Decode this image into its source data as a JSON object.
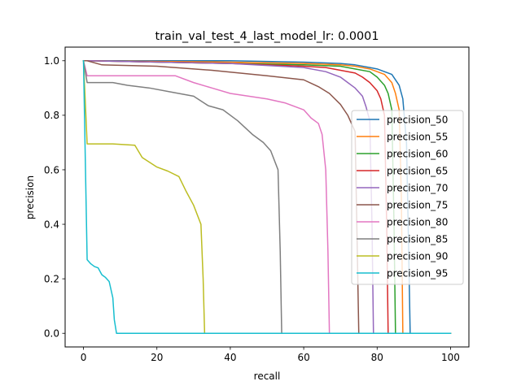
{
  "chart_data": {
    "type": "line",
    "title": "train_val_test_4_last_model_lr: 0.0001",
    "xlabel": "recall",
    "ylabel": "precision",
    "xlim": [
      -5,
      105
    ],
    "ylim": [
      -0.05,
      1.05
    ],
    "xticks": [
      0,
      20,
      40,
      60,
      80,
      100
    ],
    "xtick_labels": [
      "0",
      "20",
      "40",
      "60",
      "80",
      "100"
    ],
    "yticks": [
      0.0,
      0.2,
      0.4,
      0.6,
      0.8,
      1.0
    ],
    "ytick_labels": [
      "0.0",
      "0.2",
      "0.4",
      "0.6",
      "0.8",
      "1.0"
    ],
    "grid": false,
    "legend_position": "center-right",
    "series": [
      {
        "name": "precision_50",
        "color": "#1f77b4",
        "x": [
          0,
          1,
          40,
          60,
          70,
          74,
          78,
          80,
          82,
          84,
          86,
          87,
          88,
          88.6,
          89,
          100
        ],
        "y": [
          1.0,
          1.0,
          1.0,
          0.995,
          0.99,
          0.985,
          0.975,
          0.97,
          0.96,
          0.95,
          0.91,
          0.86,
          0.7,
          0.3,
          0.0,
          0.0
        ]
      },
      {
        "name": "precision_55",
        "color": "#ff7f0e",
        "x": [
          0,
          1,
          40,
          60,
          70,
          74,
          78,
          80,
          82,
          84,
          85,
          86,
          86.6,
          87,
          100
        ],
        "y": [
          1.0,
          1.0,
          0.995,
          0.99,
          0.985,
          0.98,
          0.97,
          0.96,
          0.95,
          0.92,
          0.88,
          0.82,
          0.5,
          0.0,
          0.0
        ]
      },
      {
        "name": "precision_60",
        "color": "#2ca02c",
        "x": [
          0,
          1,
          40,
          60,
          70,
          74,
          78,
          80,
          82,
          83,
          84,
          84.6,
          85,
          100
        ],
        "y": [
          1.0,
          1.0,
          0.99,
          0.985,
          0.98,
          0.97,
          0.96,
          0.94,
          0.91,
          0.88,
          0.82,
          0.4,
          0.0,
          0.0
        ]
      },
      {
        "name": "precision_65",
        "color": "#d62728",
        "x": [
          0,
          1,
          40,
          60,
          66,
          70,
          74,
          76,
          78,
          80,
          81,
          82,
          82.6,
          83,
          100
        ],
        "y": [
          1.0,
          1.0,
          0.99,
          0.98,
          0.975,
          0.965,
          0.955,
          0.94,
          0.92,
          0.89,
          0.86,
          0.8,
          0.4,
          0.0,
          0.0
        ]
      },
      {
        "name": "precision_70",
        "color": "#9467bd",
        "x": [
          0,
          1,
          40,
          60,
          66,
          70,
          72,
          74,
          76,
          77,
          78,
          78.6,
          79,
          100
        ],
        "y": [
          1.0,
          1.0,
          0.99,
          0.975,
          0.96,
          0.94,
          0.92,
          0.9,
          0.87,
          0.83,
          0.78,
          0.4,
          0.0,
          0.0
        ]
      },
      {
        "name": "precision_75",
        "color": "#8c564b",
        "x": [
          0,
          1,
          5,
          20,
          35,
          50,
          60,
          64,
          67,
          70,
          72,
          73,
          74,
          74.6,
          75,
          100
        ],
        "y": [
          1.0,
          1.0,
          0.985,
          0.98,
          0.965,
          0.945,
          0.93,
          0.905,
          0.88,
          0.84,
          0.8,
          0.77,
          0.74,
          0.3,
          0.0,
          0.0
        ]
      },
      {
        "name": "precision_80",
        "color": "#e377c2",
        "x": [
          0,
          1,
          10,
          25,
          30,
          35,
          40,
          45,
          50,
          55,
          60,
          62,
          64,
          65,
          66,
          66.6,
          67,
          100
        ],
        "y": [
          1.0,
          0.945,
          0.945,
          0.945,
          0.92,
          0.9,
          0.88,
          0.87,
          0.86,
          0.845,
          0.82,
          0.79,
          0.77,
          0.73,
          0.6,
          0.3,
          0.0,
          0.0
        ]
      },
      {
        "name": "precision_85",
        "color": "#7f7f7f",
        "x": [
          0,
          1,
          8,
          12,
          18,
          24,
          30,
          34,
          38,
          42,
          46,
          49,
          51,
          53,
          53.6,
          54,
          100
        ],
        "y": [
          1.0,
          0.92,
          0.92,
          0.91,
          0.9,
          0.885,
          0.87,
          0.835,
          0.82,
          0.78,
          0.73,
          0.7,
          0.67,
          0.6,
          0.3,
          0.0,
          0.0
        ]
      },
      {
        "name": "precision_90",
        "color": "#bcbd22",
        "x": [
          0,
          1,
          8,
          14,
          16,
          20,
          23,
          26,
          28,
          30,
          32,
          32.6,
          33,
          100
        ],
        "y": [
          1.0,
          0.695,
          0.695,
          0.69,
          0.645,
          0.61,
          0.595,
          0.575,
          0.52,
          0.47,
          0.4,
          0.2,
          0.0,
          0.0
        ]
      },
      {
        "name": "precision_95",
        "color": "#17becf",
        "x": [
          0,
          1,
          2,
          3,
          4,
          5,
          6,
          7,
          8,
          8.4,
          9,
          100
        ],
        "y": [
          1.0,
          0.27,
          0.255,
          0.245,
          0.24,
          0.215,
          0.205,
          0.19,
          0.13,
          0.05,
          0.0,
          0.0
        ]
      }
    ]
  }
}
